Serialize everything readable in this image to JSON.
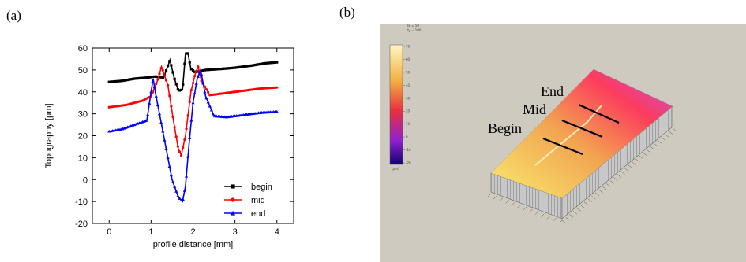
{
  "panels": {
    "a_label": "(a)",
    "b_label": "(b)"
  },
  "chart_data": {
    "type": "line",
    "xlabel": "profile distance [mm]",
    "ylabel": "Topography [μm]",
    "xlim": [
      -0.4,
      4.4
    ],
    "ylim": [
      -20,
      60
    ],
    "xticks": [
      0,
      1,
      2,
      3,
      4
    ],
    "yticks": [
      -20,
      -10,
      0,
      10,
      20,
      30,
      40,
      50,
      60
    ],
    "grid": false,
    "legend_position": "bottom-right",
    "series": [
      {
        "name": "begin",
        "color": "#000000",
        "marker": "square",
        "x": [
          0.0,
          0.3,
          0.6,
          0.9,
          1.1,
          1.3,
          1.45,
          1.55,
          1.65,
          1.75,
          1.82,
          1.88,
          1.95,
          2.05,
          2.3,
          2.7,
          3.0,
          3.4,
          3.7,
          4.0
        ],
        "y": [
          44.5,
          45,
          46,
          46.5,
          47,
          46.5,
          54.5,
          46.5,
          40.5,
          41,
          57.5,
          57.5,
          50.5,
          49,
          50,
          50.5,
          51,
          52,
          53,
          53.5
        ]
      },
      {
        "name": "mid",
        "color": "#ff0000",
        "marker": "circle",
        "x": [
          0.0,
          0.4,
          0.8,
          1.0,
          1.15,
          1.25,
          1.4,
          1.55,
          1.65,
          1.72,
          1.82,
          1.95,
          2.05,
          2.12,
          2.2,
          2.4,
          2.8,
          3.2,
          3.6,
          4.0
        ],
        "y": [
          33,
          34,
          36,
          38,
          45,
          51.5,
          43,
          25,
          14,
          11,
          20,
          40,
          48,
          51.5,
          45,
          38.5,
          39.5,
          40.5,
          41.5,
          42
        ]
      },
      {
        "name": "end",
        "color": "#0000ff",
        "marker": "triangle",
        "x": [
          0.0,
          0.3,
          0.6,
          0.9,
          1.0,
          1.05,
          1.1,
          1.2,
          1.35,
          1.5,
          1.65,
          1.75,
          1.82,
          1.9,
          2.0,
          2.1,
          2.18,
          2.3,
          2.5,
          2.8,
          3.2,
          3.6,
          4.0
        ],
        "y": [
          22,
          23,
          25,
          27,
          40,
          46,
          40,
          30,
          15,
          0,
          -8,
          -10,
          -3,
          15,
          35,
          46,
          50,
          38,
          29,
          28.5,
          29.5,
          30.5,
          31
        ]
      }
    ]
  },
  "render3d": {
    "annotations": [
      "End",
      "Mid",
      "Begin"
    ],
    "legend_header": [
      "dx = 50",
      "dy = 100"
    ],
    "colorbar_unit": "[µm]",
    "colorbar_ticks": [
      "70",
      "60",
      "50",
      "40",
      "30",
      "20",
      "10",
      "0",
      "-10",
      "-20"
    ],
    "background_color": "#cfcac0",
    "surface_colors": [
      "#f0e060",
      "#f0a050",
      "#ff4060",
      "#c050e8"
    ]
  }
}
